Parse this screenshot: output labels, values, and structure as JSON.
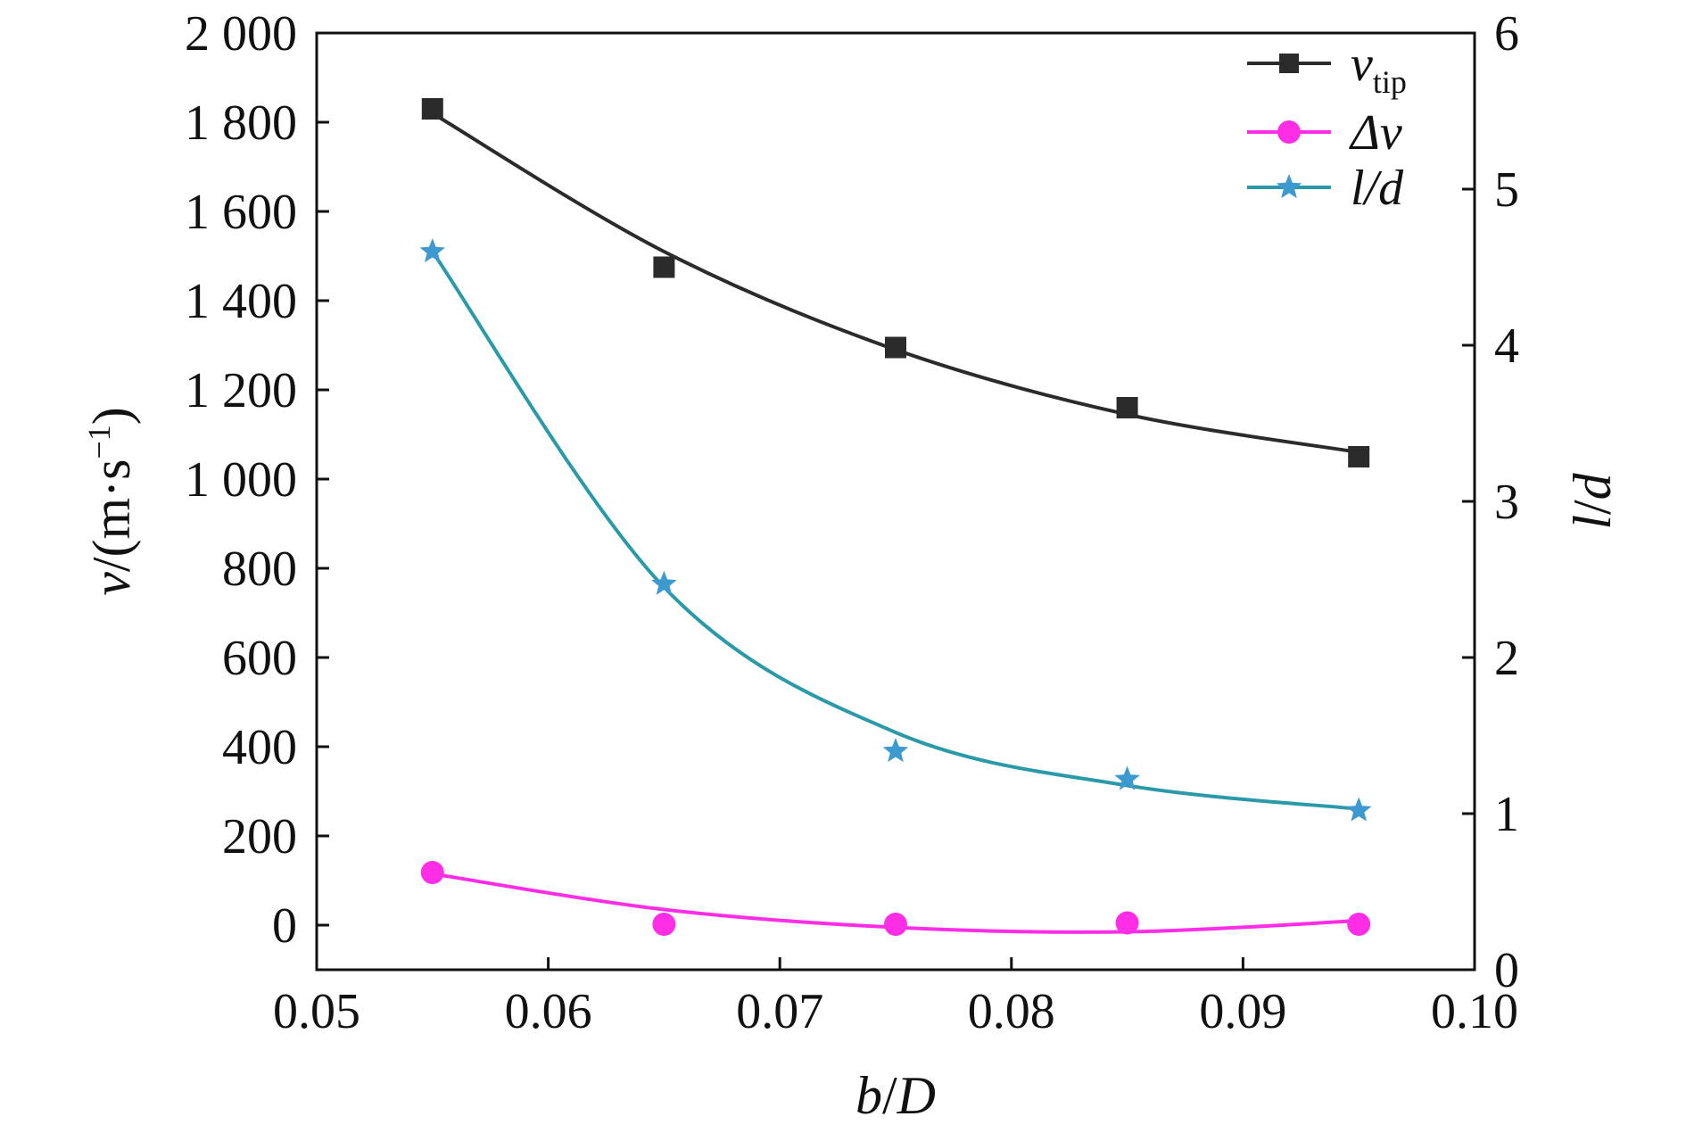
{
  "chart_data": {
    "type": "line",
    "x": [
      0.055,
      0.065,
      0.075,
      0.085,
      0.095
    ],
    "xlabel_parts": [
      "b",
      "/",
      "D"
    ],
    "xlim": [
      0.05,
      0.1
    ],
    "xticks": [
      0.05,
      0.06,
      0.07,
      0.08,
      0.09,
      0.1
    ],
    "xtick_labels": [
      "0.05",
      "0.06",
      "0.07",
      "0.08",
      "0.09",
      "0.10"
    ],
    "ylabel_parts": [
      "v",
      "/(m·s",
      "−1",
      ")"
    ],
    "ylim": [
      -100,
      2000
    ],
    "yticks": [
      0,
      200,
      400,
      600,
      800,
      1000,
      1200,
      1400,
      1600,
      1800,
      2000
    ],
    "ytick_labels": [
      "0",
      "200",
      "400",
      "600",
      "800",
      "1 000",
      "1 200",
      "1 400",
      "1 600",
      "1 800",
      "2 000"
    ],
    "y2label_parts": [
      "l",
      "/",
      "d"
    ],
    "y2lim": [
      0,
      6
    ],
    "y2ticks": [
      0,
      1,
      2,
      3,
      4,
      5,
      6
    ],
    "y2tick_labels": [
      "0",
      "1",
      "2",
      "3",
      "4",
      "5",
      "6"
    ],
    "legend_position": "top-right",
    "grid": false,
    "series": [
      {
        "key": "vtip",
        "axis": "left",
        "legend_main": "v",
        "legend_sub": "tip",
        "marker": "square",
        "color": "#2b2b2b",
        "values": [
          1830,
          1475,
          1295,
          1160,
          1050
        ],
        "fit": [
          1820,
          1510,
          1290,
          1145,
          1060
        ]
      },
      {
        "key": "dv",
        "axis": "left",
        "legend_main": "Δv",
        "legend_sub": "",
        "marker": "circle",
        "color": "#ff2ee6",
        "values": [
          118,
          2,
          2,
          5,
          2
        ],
        "fit": [
          115,
          35,
          -5,
          -15,
          10
        ]
      },
      {
        "key": "ld",
        "axis": "right",
        "legend_main": "l/d",
        "legend_sub": "",
        "marker": "star",
        "color": "#3d9ad1",
        "curve_color": "#2a9aa8",
        "values": [
          4.6,
          2.47,
          1.4,
          1.22,
          1.02
        ],
        "fit": [
          4.6,
          2.45,
          1.52,
          1.18,
          1.03
        ]
      }
    ]
  }
}
